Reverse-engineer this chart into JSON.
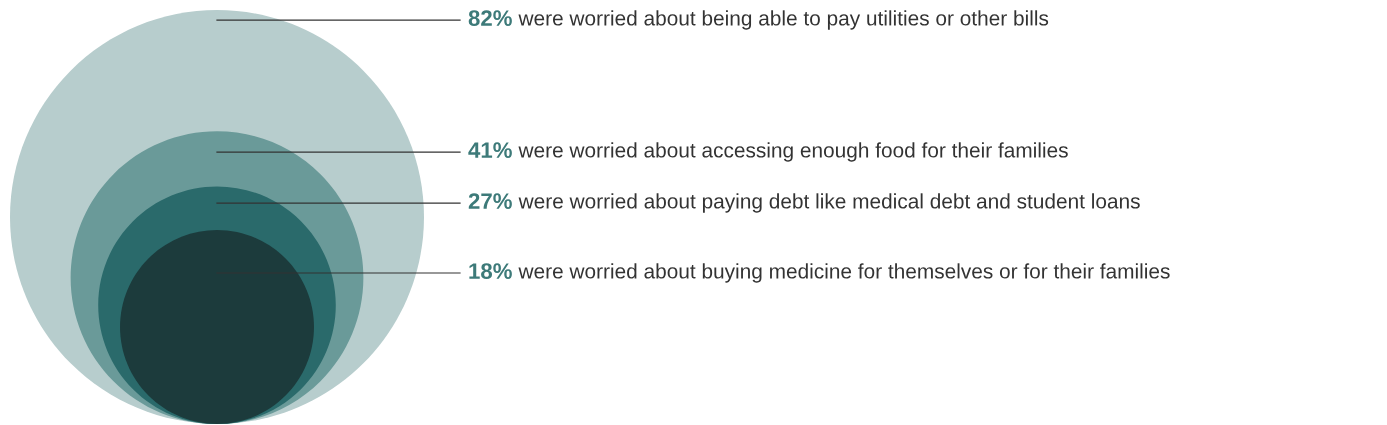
{
  "chart_data": {
    "type": "other",
    "categories": [
      "were worried about being able to pay utilities or other bills",
      "were worried about accessing enough food for their families",
      "were worried about paying debt like medical debt and student loans",
      "were worried about buying medicine for themselves or for their families"
    ],
    "values": [
      82,
      41,
      27,
      18
    ],
    "value_labels": [
      "82%",
      "41%",
      "27%",
      "18%"
    ],
    "colors": [
      "#b7cdcd",
      "#6a9a99",
      "#2a6a6b",
      "#1c3b3c"
    ]
  }
}
